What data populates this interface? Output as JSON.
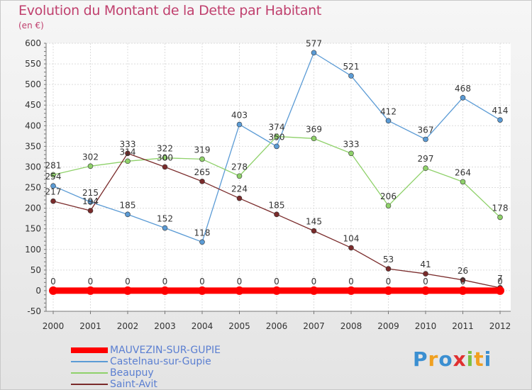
{
  "header": {
    "title": "Evolution du Montant de la Dette par Habitant",
    "unit": "(en €)"
  },
  "logo": {
    "text": "Proxiti",
    "colors": [
      "#3b8fd1",
      "#f0a020",
      "#3b8fd1",
      "#e03030",
      "#7bc043",
      "#f0a020",
      "#3b8fd1"
    ]
  },
  "chart_data": {
    "type": "line",
    "categories": [
      "2000",
      "2001",
      "2002",
      "2003",
      "2004",
      "2005",
      "2006",
      "2007",
      "2008",
      "2009",
      "2010",
      "2011",
      "2012"
    ],
    "ylim": [
      -50,
      600
    ],
    "yticks": [
      -50,
      0,
      50,
      100,
      150,
      200,
      250,
      300,
      350,
      400,
      450,
      500,
      550,
      600
    ],
    "grid": true,
    "legend_position": "bottom",
    "series": [
      {
        "name": "MAUVEZIN-SUR-GUPIE",
        "color": "#ff0000",
        "line_width": 9,
        "values": [
          0,
          0,
          0,
          0,
          0,
          0,
          0,
          0,
          0,
          0,
          0,
          0,
          0
        ],
        "labels": [
          "0",
          "0",
          "0",
          "0",
          "0",
          "0",
          "0",
          "0",
          "0",
          "0",
          "0",
          "0",
          "0"
        ]
      },
      {
        "name": "Castelnau-sur-Gupie",
        "color": "#5b9bd5",
        "line_width": 1.3,
        "values": [
          254,
          215,
          185,
          152,
          118,
          403,
          350,
          577,
          521,
          412,
          367,
          468,
          414
        ],
        "labels": [
          "254",
          "215",
          "185",
          "152",
          "118",
          "403",
          "350",
          "577",
          "521",
          "412",
          "367",
          "468",
          "414"
        ]
      },
      {
        "name": "Beaupuy",
        "color": "#8fd16a",
        "line_width": 1.3,
        "values": [
          281,
          302,
          314,
          322,
          319,
          278,
          374,
          369,
          333,
          206,
          297,
          264,
          178
        ],
        "labels": [
          "281",
          "302",
          "314",
          "322",
          "319",
          "278",
          "374",
          "369",
          "333",
          "206",
          "297",
          "264",
          "178"
        ]
      },
      {
        "name": "Saint-Avit",
        "color": "#7a2b2b",
        "line_width": 1.3,
        "values": [
          217,
          194,
          333,
          300,
          265,
          224,
          185,
          145,
          104,
          53,
          41,
          26,
          7
        ],
        "labels": [
          "217",
          "194",
          "333",
          "300",
          "265",
          "224",
          "185",
          "145",
          "104",
          "53",
          "41",
          "26",
          "7"
        ]
      }
    ]
  }
}
